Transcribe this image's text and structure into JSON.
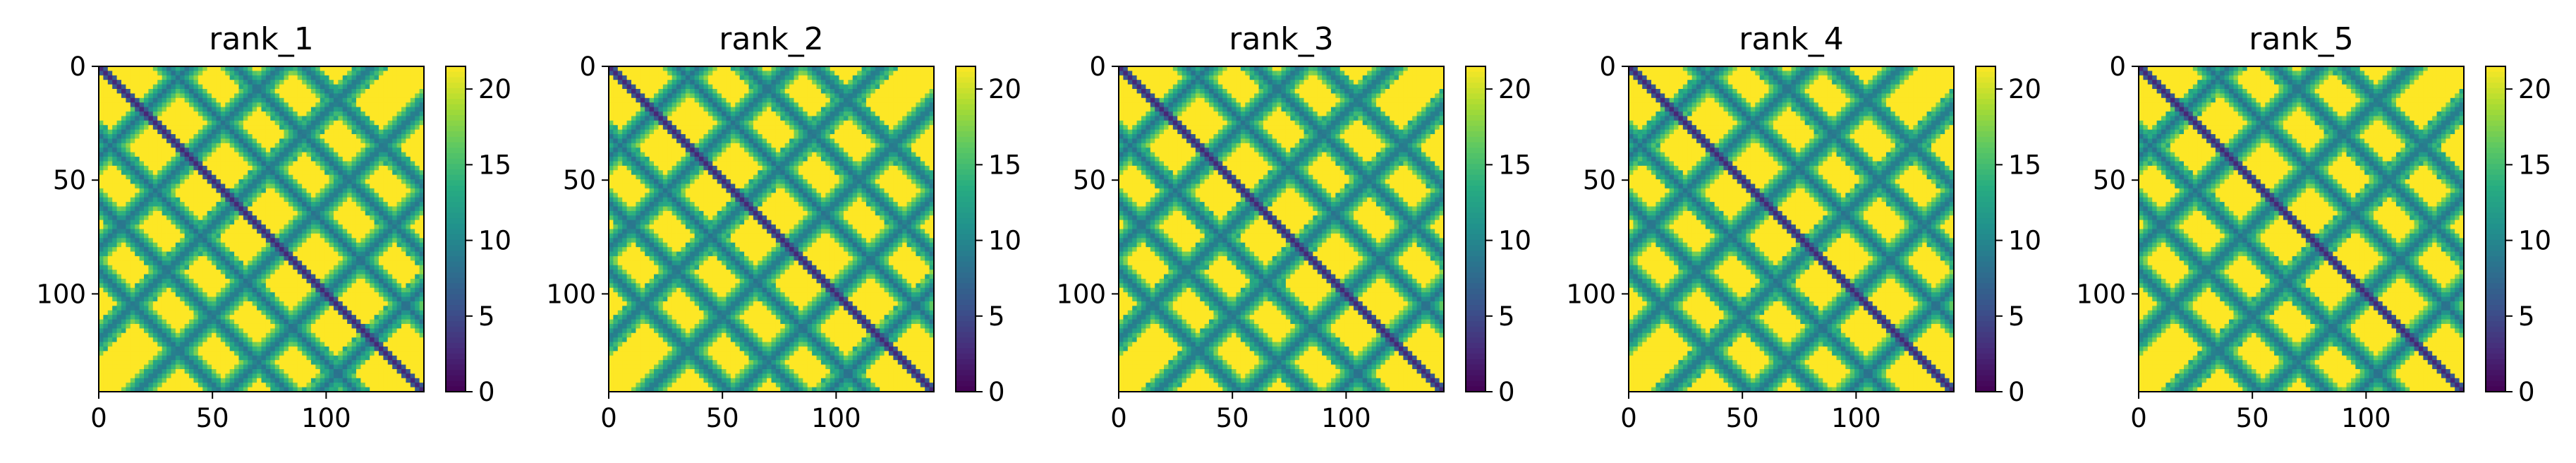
{
  "chart_data": [
    {
      "type": "heatmap",
      "title": "rank_1",
      "xlabel": "",
      "ylabel": "",
      "x_ticks": [
        "0",
        "50",
        "100"
      ],
      "y_ticks": [
        "0",
        "50",
        "100"
      ],
      "x_range": [
        0,
        143
      ],
      "y_range": [
        0,
        143
      ],
      "colorbar": {
        "ticks": [
          "0",
          "5",
          "10",
          "15",
          "20"
        ],
        "range": [
          0,
          21.5
        ],
        "colormap": "viridis"
      },
      "grid": false
    },
    {
      "type": "heatmap",
      "title": "rank_2",
      "xlabel": "",
      "ylabel": "",
      "x_ticks": [
        "0",
        "50",
        "100"
      ],
      "y_ticks": [
        "0",
        "50",
        "100"
      ],
      "x_range": [
        0,
        143
      ],
      "y_range": [
        0,
        143
      ],
      "colorbar": {
        "ticks": [
          "0",
          "5",
          "10",
          "15",
          "20"
        ],
        "range": [
          0,
          21.5
        ],
        "colormap": "viridis"
      },
      "grid": false
    },
    {
      "type": "heatmap",
      "title": "rank_3",
      "xlabel": "",
      "ylabel": "",
      "x_ticks": [
        "0",
        "50",
        "100"
      ],
      "y_ticks": [
        "0",
        "50",
        "100"
      ],
      "x_range": [
        0,
        143
      ],
      "y_range": [
        0,
        143
      ],
      "colorbar": {
        "ticks": [
          "0",
          "5",
          "10",
          "15",
          "20"
        ],
        "range": [
          0,
          21.5
        ],
        "colormap": "viridis"
      },
      "grid": false
    },
    {
      "type": "heatmap",
      "title": "rank_4",
      "xlabel": "",
      "ylabel": "",
      "x_ticks": [
        "0",
        "50",
        "100"
      ],
      "y_ticks": [
        "0",
        "50",
        "100"
      ],
      "x_range": [
        0,
        143
      ],
      "y_range": [
        0,
        143
      ],
      "colorbar": {
        "ticks": [
          "0",
          "5",
          "10",
          "15",
          "20"
        ],
        "range": [
          0,
          21.5
        ],
        "colormap": "viridis"
      },
      "grid": false
    },
    {
      "type": "heatmap",
      "title": "rank_5",
      "xlabel": "",
      "ylabel": "",
      "x_ticks": [
        "0",
        "50",
        "100"
      ],
      "y_ticks": [
        "0",
        "50",
        "100"
      ],
      "x_range": [
        0,
        143
      ],
      "y_range": [
        0,
        143
      ],
      "colorbar": {
        "ticks": [
          "0",
          "5",
          "10",
          "15",
          "20"
        ],
        "range": [
          0,
          21.5
        ],
        "colormap": "viridis"
      },
      "grid": false
    }
  ]
}
